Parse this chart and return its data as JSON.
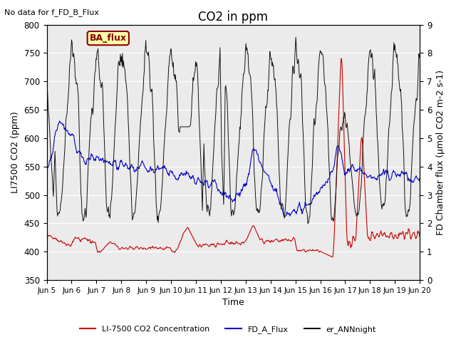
{
  "title": "CO2 in ppm",
  "top_left_text": "No data for f_FD_B_Flux",
  "legend_box_text": "BA_flux",
  "ylabel_left": "LI7500 CO2 (ppm)",
  "ylabel_right": "FD Chamber flux (μmol CO2 m-2 s-1)",
  "xlabel": "Time",
  "ylim_left": [
    350,
    800
  ],
  "ylim_right": [
    0.0,
    9.0
  ],
  "yticks_left": [
    350,
    400,
    450,
    500,
    550,
    600,
    650,
    700,
    750,
    800
  ],
  "yticks_right": [
    0.0,
    1.0,
    2.0,
    3.0,
    4.0,
    5.0,
    6.0,
    7.0,
    8.0,
    9.0
  ],
  "xtick_labels": [
    "Jun 5",
    "Jun 6",
    "Jun 7",
    "Jun 8",
    "Jun 9",
    "Jun 10",
    "Jun 11",
    "Jun 12",
    "Jun 13",
    "Jun 14",
    "Jun 15",
    "Jun 16",
    "Jun 17",
    "Jun 18",
    "Jun 19",
    "Jun 20"
  ],
  "background_color": "#ffffff",
  "plot_bg_color": "#ebebeb",
  "line_colors": [
    "#cc0000",
    "#0000cc",
    "#111111"
  ],
  "line_labels": [
    "LI-7500 CO2 Concentration",
    "FD_A_Flux",
    "er_ANNnight"
  ],
  "grid_color": "#ffffff",
  "title_fontsize": 12,
  "label_fontsize": 9,
  "ba_flux_color": "#8B0000",
  "ba_flux_bg": "#ffffaa"
}
